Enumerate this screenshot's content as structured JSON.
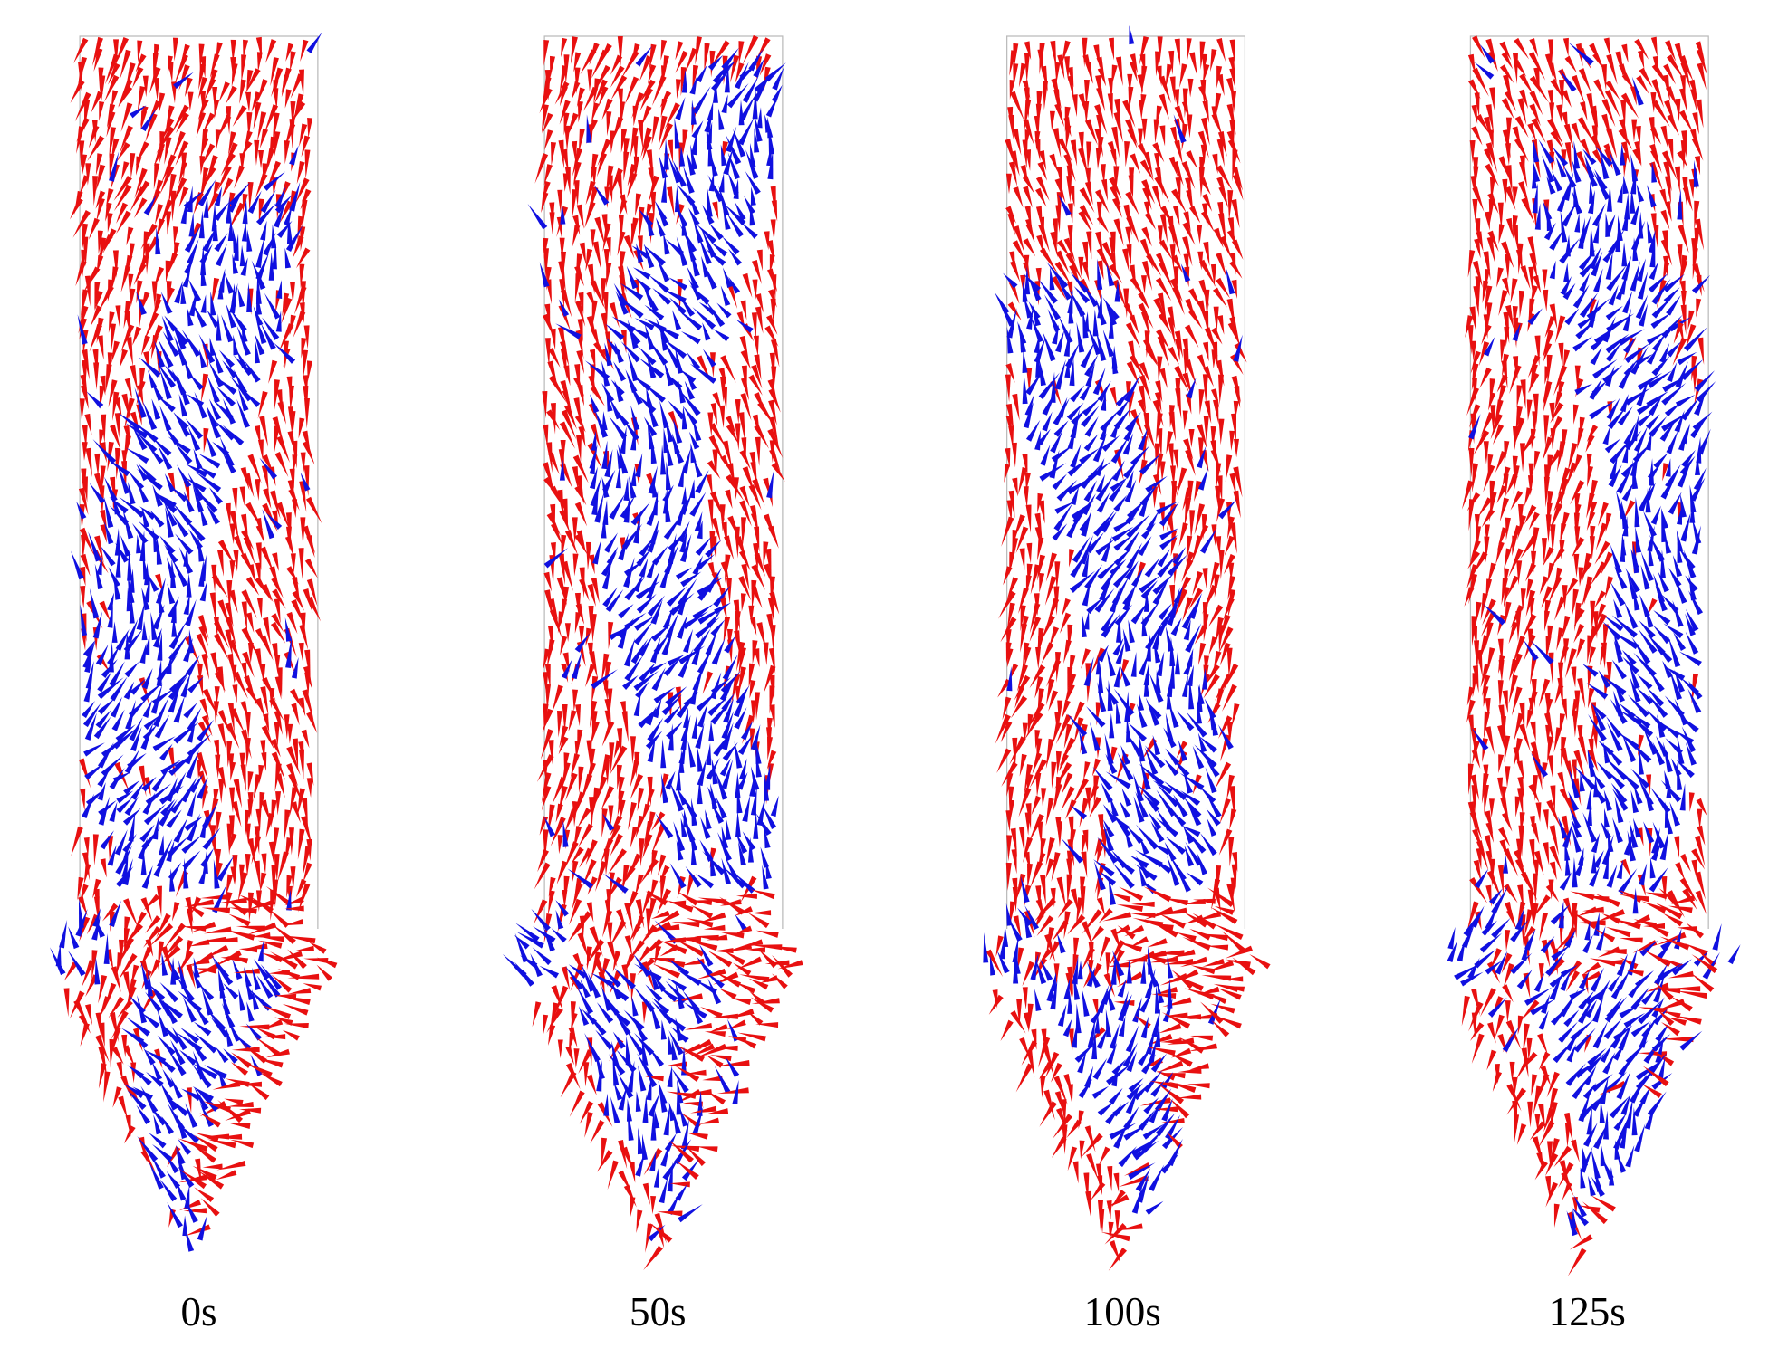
{
  "panels": [
    {
      "label": "0s"
    },
    {
      "label": "50s"
    },
    {
      "label": "100s"
    },
    {
      "label": "125s"
    }
  ]
}
